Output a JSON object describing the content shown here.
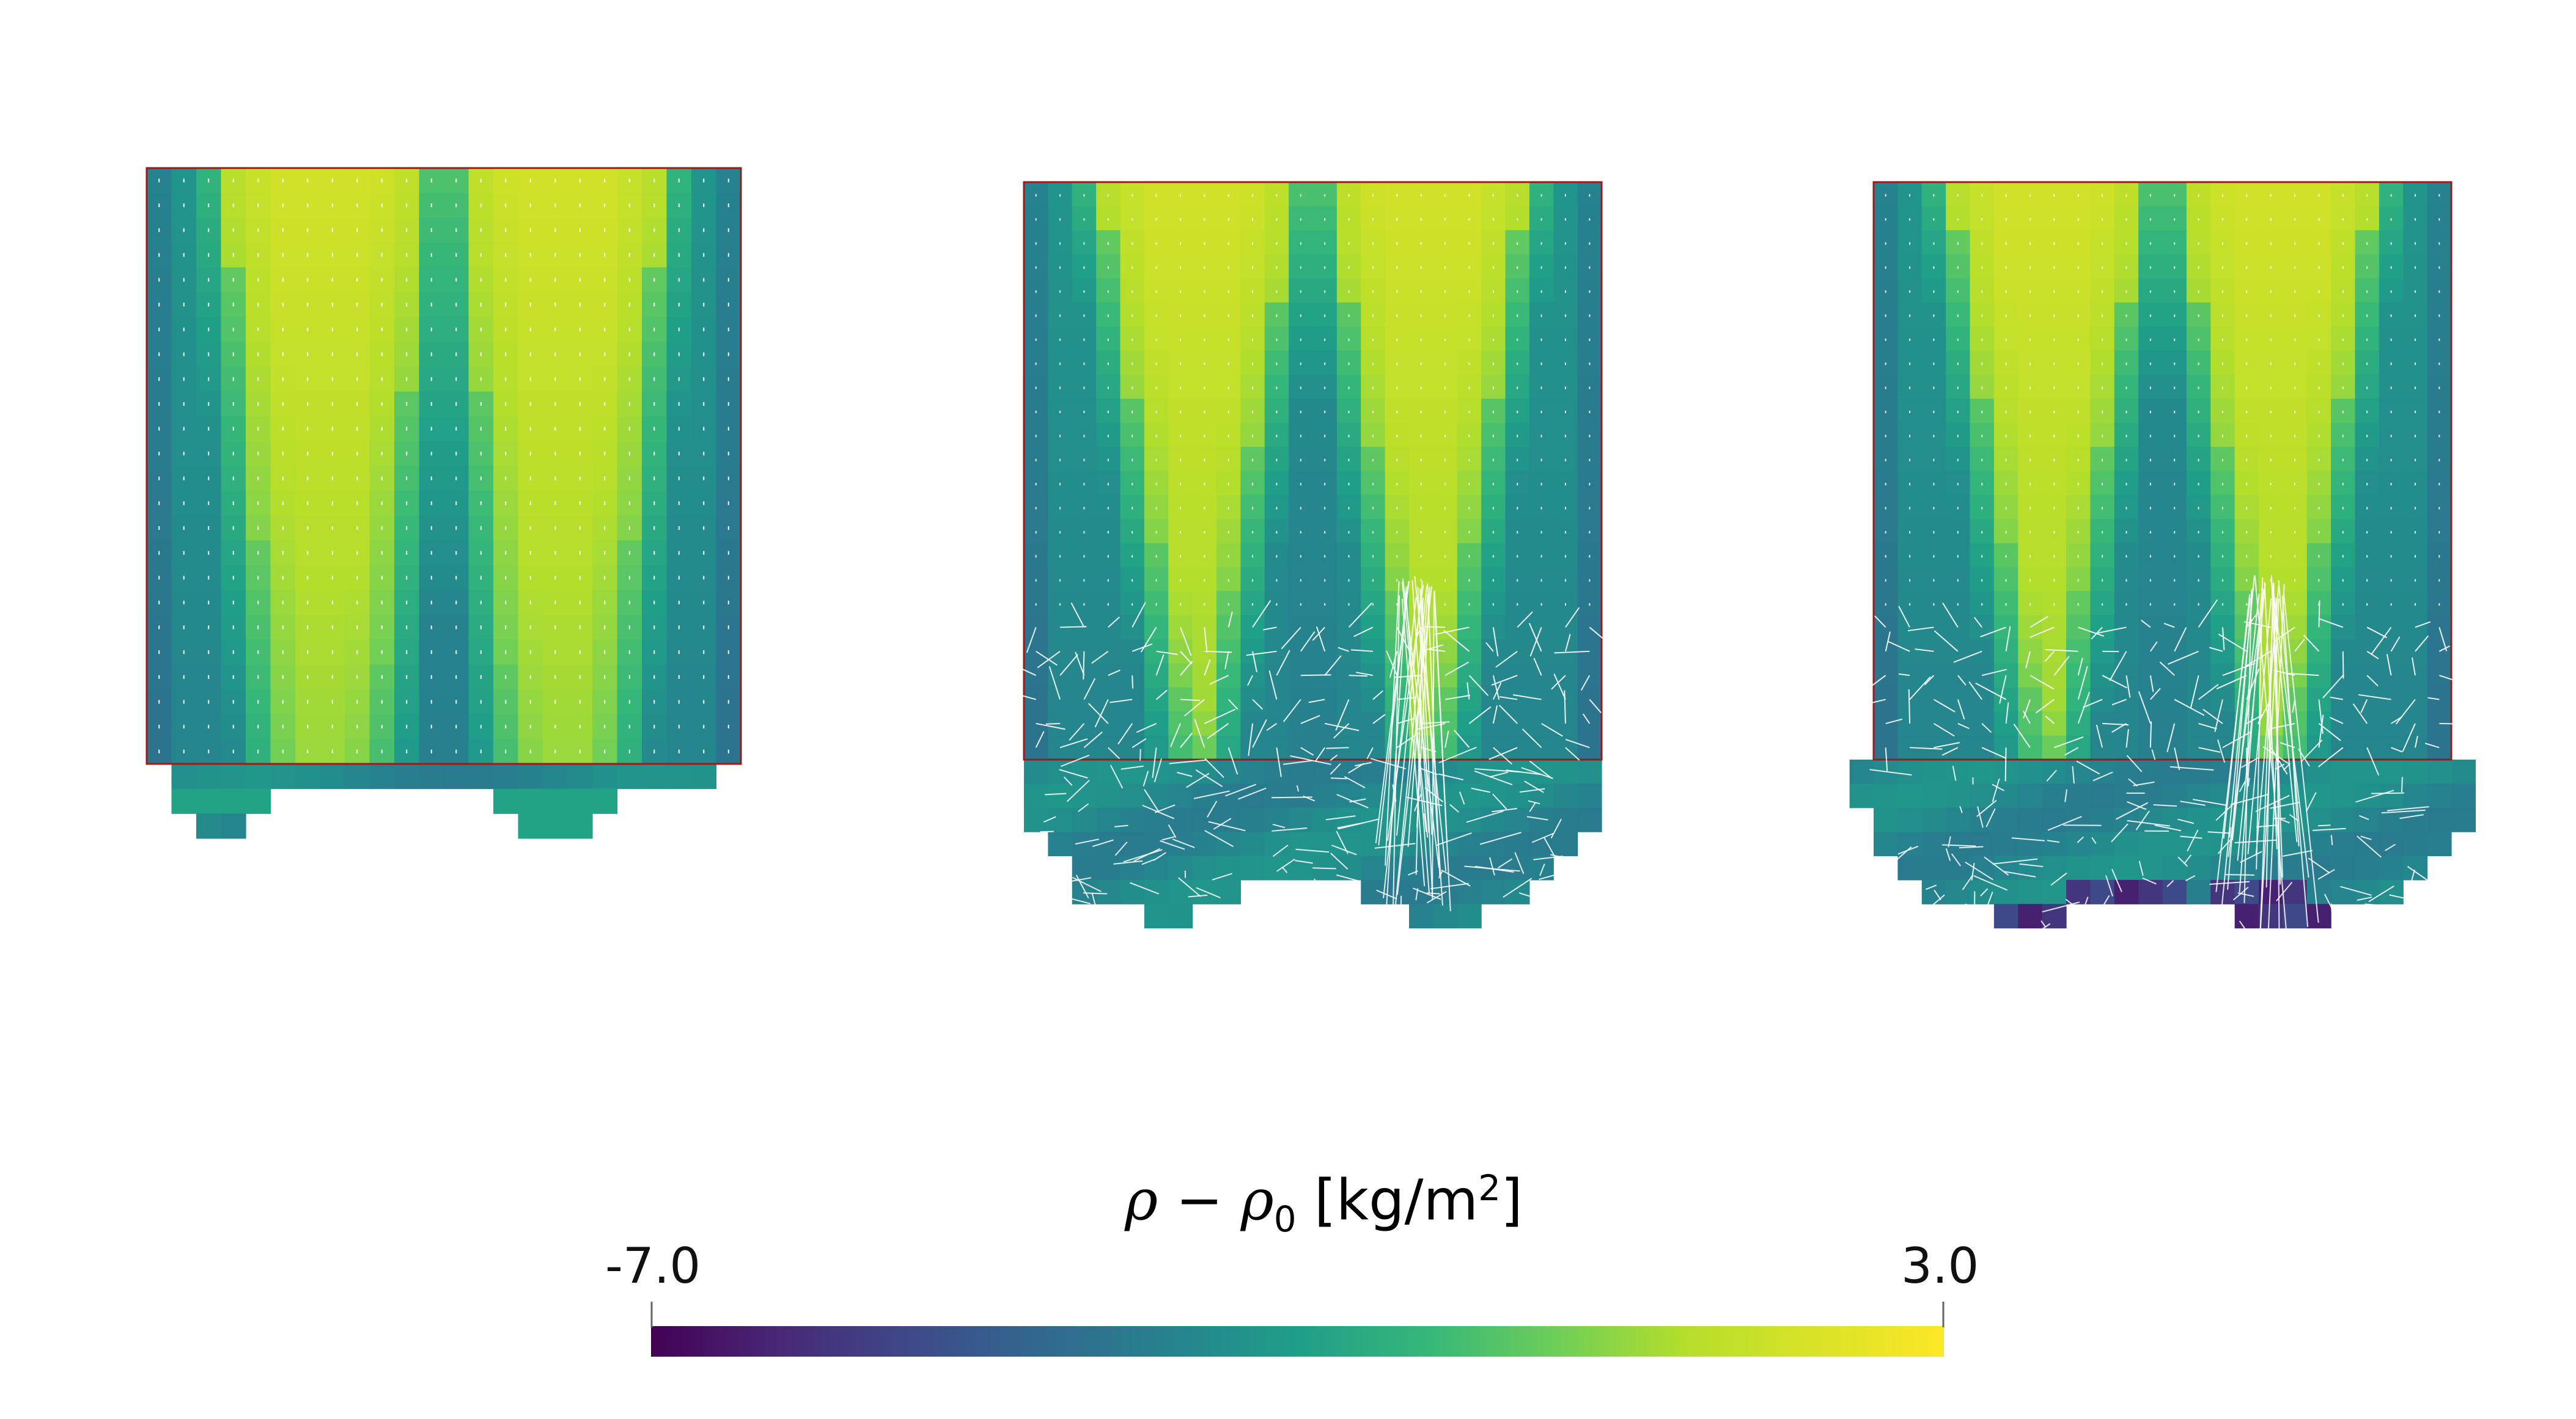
{
  "legend": {
    "symbol": "ρ",
    "minus": " − ",
    "subscript": "0",
    "unit_open": " [kg/m",
    "unit_power": "2",
    "unit_close": "]",
    "min_label": "-7.0",
    "max_label": "3.0",
    "min_value": -7.0,
    "max_value": 3.0,
    "colormap": "viridis",
    "colors": [
      "#440154",
      "#3b528b",
      "#21918c",
      "#5ec962",
      "#fde725"
    ]
  },
  "panels": [
    {
      "name": "panel-left",
      "vectors": "small",
      "bottom_shape": "two-feet"
    },
    {
      "name": "panel-middle",
      "vectors": "turbulent",
      "bottom_shape": "stepped-two-feet"
    },
    {
      "name": "panel-right",
      "vectors": "turbulent",
      "bottom_shape": "wide-stepped-dark-feet"
    }
  ],
  "colors": {
    "outline": "#a01818",
    "vector": "#ffffff"
  }
}
